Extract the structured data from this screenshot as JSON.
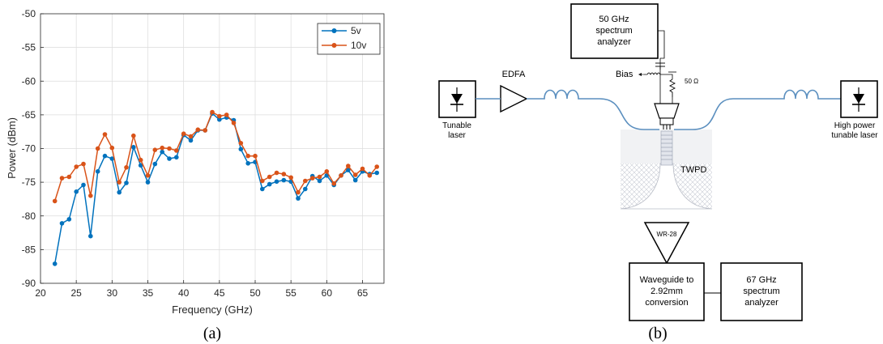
{
  "figure_a": {
    "caption": "(a)",
    "chart_data": {
      "type": "line",
      "title": "",
      "xlabel": "Frequency (GHz)",
      "ylabel": "Power (dBm)",
      "xlim": [
        20,
        68
      ],
      "ylim": [
        -90,
        -50
      ],
      "xticks": [
        20,
        25,
        30,
        35,
        40,
        45,
        50,
        55,
        60,
        65
      ],
      "yticks": [
        -90,
        -85,
        -80,
        -75,
        -70,
        -65,
        -60,
        -55,
        -50
      ],
      "grid": true,
      "legend_position": "top-right",
      "series": [
        {
          "name": "5v",
          "color": "#0072BD",
          "x": [
            22,
            23,
            24,
            25,
            26,
            27,
            28,
            29,
            30,
            31,
            32,
            33,
            34,
            35,
            36,
            37,
            38,
            39,
            40,
            41,
            42,
            43,
            44,
            45,
            46,
            47,
            48,
            49,
            50,
            51,
            52,
            53,
            54,
            55,
            56,
            57,
            58,
            59,
            60,
            61,
            62,
            63,
            64,
            65,
            66,
            67
          ],
          "values": [
            -87.1,
            -81.1,
            -80.5,
            -76.4,
            -75.4,
            -83.0,
            -73.4,
            -71.1,
            -71.5,
            -76.5,
            -75.1,
            -69.8,
            -72.5,
            -75.0,
            -72.3,
            -70.5,
            -71.5,
            -71.3,
            -68.0,
            -68.8,
            -67.3,
            -67.3,
            -64.8,
            -65.7,
            -65.4,
            -65.8,
            -70.1,
            -72.2,
            -72.0,
            -76.0,
            -75.3,
            -74.9,
            -74.7,
            -74.9,
            -77.4,
            -76.0,
            -74.1,
            -74.8,
            -74.0,
            -75.4,
            -74.0,
            -73.2,
            -74.7,
            -73.4,
            -73.8,
            -73.6
          ]
        },
        {
          "name": "10v",
          "color": "#D95319",
          "x": [
            22,
            23,
            24,
            25,
            26,
            27,
            28,
            29,
            30,
            31,
            32,
            33,
            34,
            35,
            36,
            37,
            38,
            39,
            40,
            41,
            42,
            43,
            44,
            45,
            46,
            47,
            48,
            49,
            50,
            51,
            52,
            53,
            54,
            55,
            56,
            57,
            58,
            59,
            60,
            61,
            62,
            63,
            64,
            65,
            66,
            67
          ],
          "values": [
            -77.8,
            -74.4,
            -74.2,
            -72.7,
            -72.3,
            -77.0,
            -70.0,
            -67.9,
            -69.9,
            -75.0,
            -72.8,
            -68.1,
            -71.7,
            -74.0,
            -70.2,
            -69.9,
            -70.0,
            -70.3,
            -67.8,
            -68.2,
            -67.2,
            -67.3,
            -64.6,
            -65.2,
            -65.0,
            -66.2,
            -69.2,
            -71.1,
            -71.1,
            -74.8,
            -74.2,
            -73.6,
            -73.8,
            -74.3,
            -76.5,
            -74.8,
            -74.4,
            -74.2,
            -73.4,
            -75.2,
            -74.0,
            -72.6,
            -73.9,
            -73.0,
            -74.0,
            -72.7
          ]
        }
      ]
    }
  },
  "figure_b": {
    "caption": "(b)",
    "spectrum_50_lines": [
      "50 GHz",
      "spectrum",
      "analyzer"
    ],
    "tunable_laser_lines": [
      "Tunable",
      "laser"
    ],
    "high_power_laser_lines": [
      "High power",
      "tunable laser"
    ],
    "edfa_label": "EDFA",
    "bias_label": "Bias",
    "resistor_label": "50 Ω",
    "twpd_label": "TWPD",
    "waveguide_label": "WR-28",
    "waveguide_conv_lines": [
      "Waveguide to",
      "2.92mm",
      "conversion"
    ],
    "spectrum_67_lines": [
      "67 GHz",
      "spectrum",
      "analyzer"
    ],
    "colors": {
      "fiber": "#5b8fbf",
      "box_stroke": "#000000",
      "hatch": "#c8ccd6"
    }
  }
}
